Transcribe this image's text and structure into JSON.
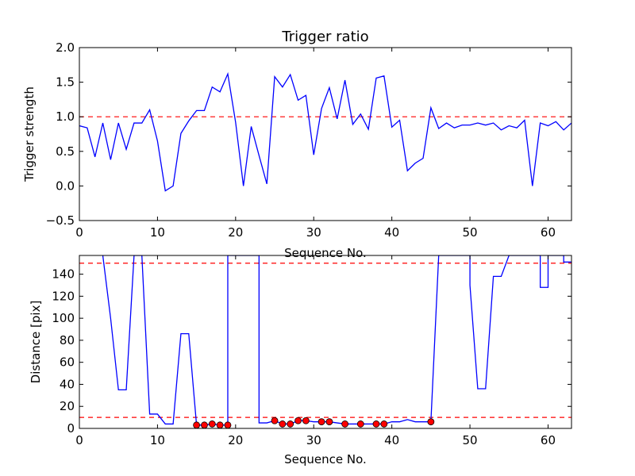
{
  "chart_data": [
    {
      "type": "line",
      "title": "Trigger ratio",
      "xlabel": "Sequence No.",
      "ylabel": "Trigger strength",
      "xlim": [
        0,
        63
      ],
      "ylim": [
        -0.5,
        2.0
      ],
      "xticks": [
        "0",
        "10",
        "20",
        "30",
        "40",
        "50",
        "60"
      ],
      "yticks": [
        "−0.5",
        "0.0",
        "0.5",
        "1.0",
        "1.5",
        "2.0"
      ],
      "grid": false,
      "series": [
        {
          "color": "#0000ff",
          "x": [
            0,
            1,
            2,
            3,
            4,
            5,
            6,
            7,
            8,
            9,
            10,
            11,
            12,
            13,
            14,
            15,
            16,
            17,
            18,
            19,
            20,
            21,
            22,
            23,
            24,
            25,
            26,
            27,
            28,
            29,
            30,
            31,
            32,
            33,
            34,
            35,
            36,
            37,
            38,
            39,
            40,
            41,
            42,
            43,
            44,
            45,
            46,
            47,
            48,
            49,
            50,
            51,
            52,
            53,
            54,
            55,
            56,
            57,
            58,
            59,
            60,
            61,
            62,
            63
          ],
          "y": [
            0.87,
            0.84,
            0.42,
            0.91,
            0.38,
            0.91,
            0.53,
            0.91,
            0.91,
            1.1,
            0.65,
            -0.07,
            0.0,
            0.76,
            0.94,
            1.09,
            1.09,
            1.43,
            1.36,
            1.62,
            0.92,
            0.0,
            0.86,
            0.44,
            0.03,
            1.58,
            1.43,
            1.61,
            1.24,
            1.31,
            0.45,
            1.12,
            1.42,
            0.97,
            1.53,
            0.89,
            1.04,
            0.82,
            1.56,
            1.59,
            0.85,
            0.95,
            0.22,
            0.33,
            0.4,
            1.13,
            0.83,
            0.91,
            0.84,
            0.88,
            0.88,
            0.91,
            0.88,
            0.91,
            0.81,
            0.87,
            0.84,
            0.95,
            0.0,
            0.91,
            0.87,
            0.93,
            0.81,
            0.91
          ]
        }
      ],
      "reference_lines": [
        {
          "y": 1.0,
          "color": "#ff0000",
          "style": "dashed"
        }
      ]
    },
    {
      "type": "line",
      "xlabel": "Sequence No.",
      "ylabel": "Distance [pix]",
      "xlim": [
        0,
        63
      ],
      "ylim": [
        0,
        157
      ],
      "xticks": [
        "0",
        "10",
        "20",
        "30",
        "40",
        "50",
        "60"
      ],
      "yticks": [
        "0",
        "20",
        "40",
        "60",
        "80",
        "100",
        "120",
        "140"
      ],
      "grid": false,
      "series": [
        {
          "color": "#0000ff",
          "x": [
            3,
            4,
            5,
            6,
            7,
            8,
            9,
            10,
            11,
            12,
            13,
            14,
            15,
            16,
            17,
            18,
            19,
            19,
            20,
            21,
            22,
            23,
            23,
            24,
            25,
            26,
            27,
            28,
            29,
            30,
            31,
            32,
            33,
            34,
            35,
            36,
            37,
            38,
            39,
            40,
            41,
            42,
            43,
            44,
            45,
            46,
            47,
            48,
            49,
            50,
            50,
            51,
            52,
            53,
            54,
            55,
            56,
            57,
            58,
            59,
            59,
            60,
            60,
            61,
            62,
            62,
            63
          ],
          "y": [
            157,
            100,
            35,
            35,
            157,
            157,
            13,
            13,
            4,
            4,
            86,
            86,
            3,
            3,
            4,
            3,
            3,
            157,
            157,
            157,
            157,
            157,
            5,
            5,
            7,
            4,
            4,
            7,
            7,
            6,
            6,
            6,
            5,
            4,
            4,
            4,
            4,
            4,
            4,
            6,
            6,
            8,
            6,
            6,
            6,
            157,
            157,
            157,
            157,
            157,
            130,
            36,
            36,
            138,
            138,
            157,
            157,
            157,
            157,
            157,
            128,
            128,
            157,
            157,
            157,
            151,
            151
          ]
        },
        {
          "type": "scatter",
          "color": "#ff0000",
          "edgecolor": "#000000",
          "x": [
            15,
            16,
            17,
            18,
            19,
            25,
            26,
            27,
            28,
            29,
            31,
            32,
            34,
            36,
            38,
            39,
            45
          ],
          "y": [
            3,
            3,
            4,
            3,
            3,
            7,
            4,
            4,
            7,
            7,
            6,
            6,
            4,
            4,
            4,
            4,
            6
          ]
        }
      ],
      "reference_lines": [
        {
          "y": 150,
          "color": "#ff0000",
          "style": "dashed"
        },
        {
          "y": 10,
          "color": "#ff0000",
          "style": "dashed"
        }
      ]
    }
  ]
}
